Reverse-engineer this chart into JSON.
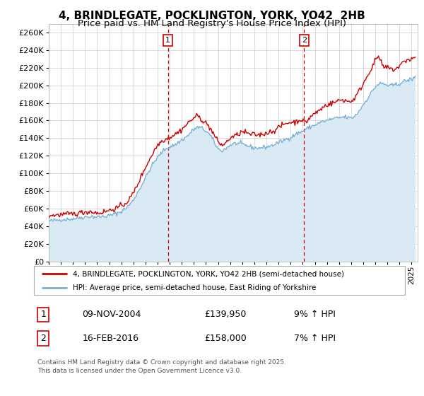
{
  "title": "4, BRINDLEGATE, POCKLINGTON, YORK, YO42  2HB",
  "subtitle": "Price paid vs. HM Land Registry's House Price Index (HPI)",
  "ylabel_ticks": [
    0,
    20000,
    40000,
    60000,
    80000,
    100000,
    120000,
    140000,
    160000,
    180000,
    200000,
    220000,
    240000,
    260000
  ],
  "xmin": 1995.0,
  "xmax": 2025.5,
  "ymin": 0,
  "ymax": 270000,
  "line1_color": "#cc0000",
  "line2_color": "#7ab0d4",
  "line2_fill_color": "#daeaf5",
  "vline_color": "#cc0000",
  "purchase1_x": 2004.86,
  "purchase1_label": "1",
  "purchase2_x": 2016.12,
  "purchase2_label": "2",
  "legend_line1": "4, BRINDLEGATE, POCKLINGTON, YORK, YO42 2HB (semi-detached house)",
  "legend_line2": "HPI: Average price, semi-detached house, East Riding of Yorkshire",
  "ann1_num": "1",
  "ann1_date": "09-NOV-2004",
  "ann1_price": "£139,950",
  "ann1_hpi": "9% ↑ HPI",
  "ann2_num": "2",
  "ann2_date": "16-FEB-2016",
  "ann2_price": "£158,000",
  "ann2_hpi": "7% ↑ HPI",
  "copyright": "Contains HM Land Registry data © Crown copyright and database right 2025.\nThis data is licensed under the Open Government Licence v3.0.",
  "bg_color": "#ffffff",
  "plot_bg_color": "#ffffff",
  "grid_color": "#cccccc",
  "title_fontsize": 11,
  "subtitle_fontsize": 9.5
}
